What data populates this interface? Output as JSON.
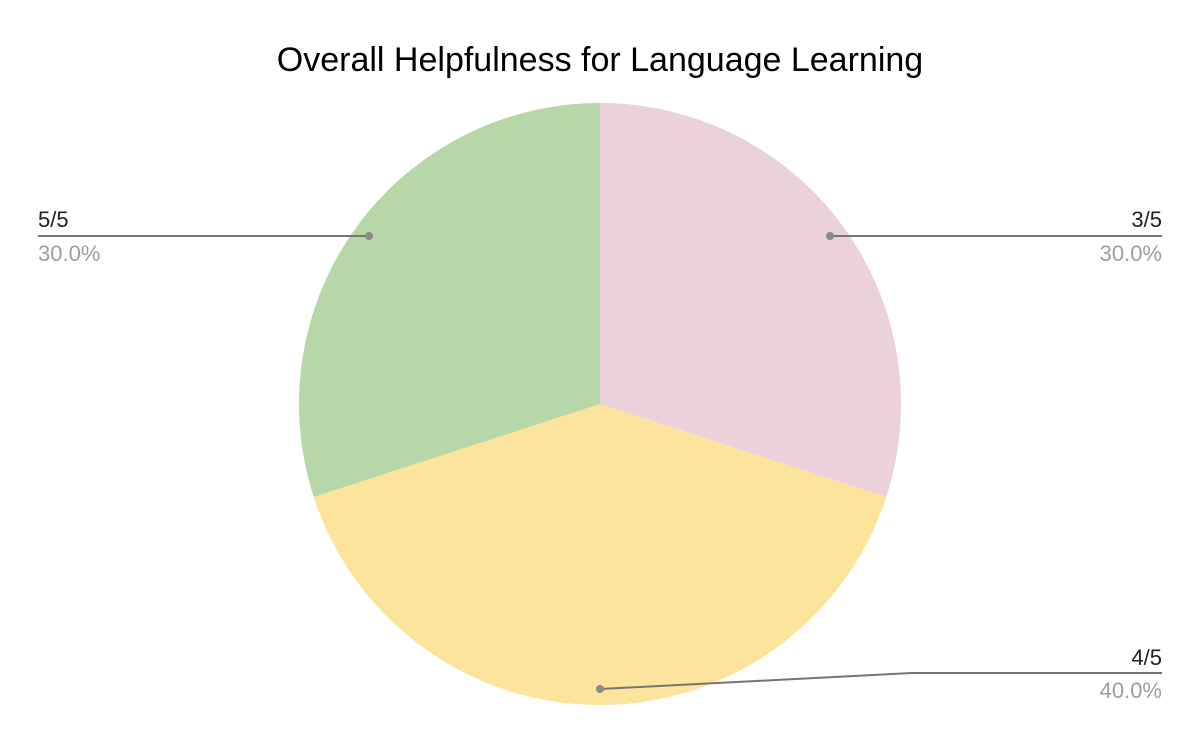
{
  "chart_data": {
    "type": "pie",
    "title": "Overall Helpfulness for Language Learning",
    "slices": [
      {
        "label": "3/5",
        "value": 30.0,
        "display": "30.0%",
        "color": "#ead1dc"
      },
      {
        "label": "4/5",
        "value": 40.0,
        "display": "40.0%",
        "color": "#fde49c"
      },
      {
        "label": "5/5",
        "value": 30.0,
        "display": "30.0%",
        "color": "#b7d7a8"
      }
    ],
    "start_angle_deg": 0,
    "direction": "clockwise",
    "label_style": "external-callout",
    "legend": "none"
  }
}
